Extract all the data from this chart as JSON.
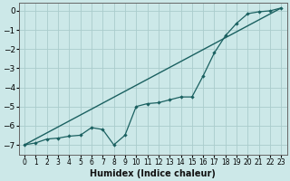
{
  "xlabel": "Humidex (Indice chaleur)",
  "background_color": "#cce8e8",
  "grid_color": "#aacccc",
  "line_color": "#1a6060",
  "xlim": [
    -0.5,
    23.5
  ],
  "ylim": [
    -7.5,
    0.4
  ],
  "yticks": [
    0,
    -1,
    -2,
    -3,
    -4,
    -5,
    -6,
    -7
  ],
  "xticks": [
    0,
    1,
    2,
    3,
    4,
    5,
    6,
    7,
    8,
    9,
    10,
    11,
    12,
    13,
    14,
    15,
    16,
    17,
    18,
    19,
    20,
    21,
    22,
    23
  ],
  "xtick_labels": [
    "0",
    "1",
    "2",
    "3",
    "4",
    "5",
    "6",
    "7",
    "8",
    "9",
    "10",
    "11",
    "12",
    "13",
    "14",
    "15",
    "16",
    "17",
    "18",
    "19",
    "20",
    "21",
    "22",
    "23"
  ],
  "line1_x": [
    0,
    23
  ],
  "line1_y": [
    -7.0,
    0.15
  ],
  "line2_x": [
    0,
    1,
    2,
    3,
    4,
    5,
    6,
    7,
    8,
    9,
    10,
    11,
    12,
    13,
    14,
    15,
    16,
    17,
    18,
    19,
    20,
    21,
    22,
    23
  ],
  "line2_y": [
    -7.0,
    -6.9,
    -6.7,
    -6.65,
    -6.55,
    -6.5,
    -6.1,
    -6.2,
    -7.0,
    -6.5,
    -5.0,
    -4.85,
    -4.8,
    -4.65,
    -4.5,
    -4.5,
    -3.4,
    -2.2,
    -1.3,
    -0.65,
    -0.15,
    -0.05,
    0.0,
    0.15
  ],
  "ytick_fontsize": 6.5,
  "xtick_fontsize": 5.5,
  "xlabel_fontsize": 7.0,
  "linewidth1": 1.0,
  "linewidth2": 0.9,
  "marker_size": 2.2
}
